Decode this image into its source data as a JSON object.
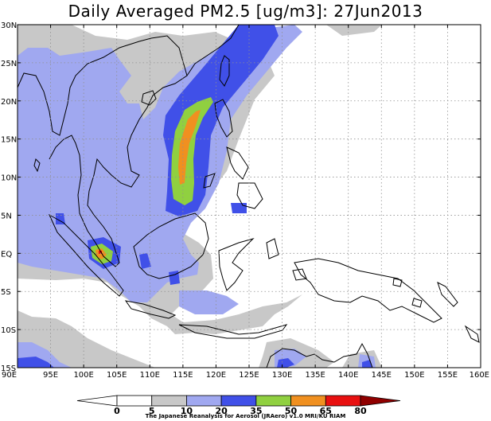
{
  "title": "Daily Averaged PM2.5 [ug/m3]: 27Jun2013",
  "credit": "The Japanese Reanalysis for Aerosol (JRAero) v1.0 MRI/KU RIAM",
  "map": {
    "lon_range": [
      90,
      160
    ],
    "lat_range": [
      -15,
      30
    ],
    "lon_ticks": [
      {
        "v": 90,
        "label": "90E"
      },
      {
        "v": 95,
        "label": "95E"
      },
      {
        "v": 100,
        "label": "100E"
      },
      {
        "v": 105,
        "label": "105E"
      },
      {
        "v": 110,
        "label": "110E"
      },
      {
        "v": 115,
        "label": "115E"
      },
      {
        "v": 120,
        "label": "120E"
      },
      {
        "v": 125,
        "label": "125E"
      },
      {
        "v": 130,
        "label": "130E"
      },
      {
        "v": 135,
        "label": "135E"
      },
      {
        "v": 140,
        "label": "140E"
      },
      {
        "v": 145,
        "label": "145E"
      },
      {
        "v": 150,
        "label": "150E"
      },
      {
        "v": 155,
        "label": "155E"
      },
      {
        "v": 160,
        "label": "160E"
      }
    ],
    "lat_ticks": [
      {
        "v": 30,
        "label": "30N"
      },
      {
        "v": 25,
        "label": "25N"
      },
      {
        "v": 20,
        "label": "20N"
      },
      {
        "v": 15,
        "label": "15N"
      },
      {
        "v": 10,
        "label": "10N"
      },
      {
        "v": 5,
        "label": "5N"
      },
      {
        "v": 0,
        "label": "EQ"
      },
      {
        "v": -5,
        "label": "5S"
      },
      {
        "v": -10,
        "label": "10S"
      },
      {
        "v": -15,
        "label": "15S"
      }
    ],
    "grid": "dotted"
  },
  "colorbar": {
    "levels": [
      "0",
      "5",
      "10",
      "20",
      "35",
      "50",
      "65",
      "80"
    ],
    "colors": [
      "#ffffff",
      "#ffffff",
      "#c8c8c8",
      "#a0a8f0",
      "#4050e8",
      "#90d040",
      "#f09020",
      "#e81010",
      "#900000"
    ]
  }
}
